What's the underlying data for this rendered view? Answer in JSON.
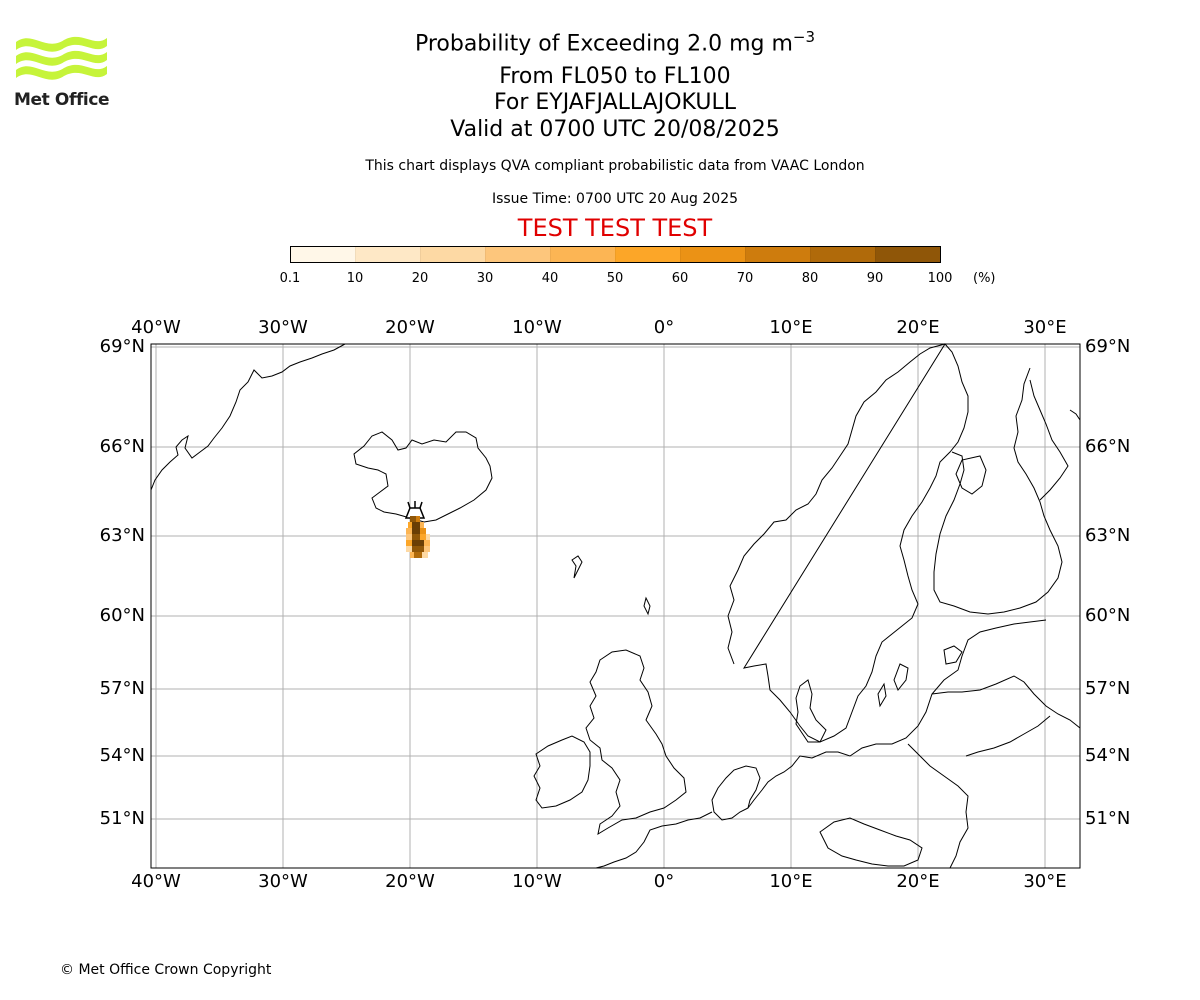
{
  "logo": {
    "text": "Met Office",
    "icon": "met-office-wave-logo",
    "color": "#c6f43a"
  },
  "title": {
    "main": "Probability of Exceeding 2.0 mg m",
    "superscript": "−3",
    "line2": "From FL050 to FL100",
    "line3": "For EYJAFJALLAJOKULL",
    "line4": "Valid at 0700 UTC 20/08/2025"
  },
  "subtitle": "This chart displays QVA compliant probabilistic data from VAAC London",
  "issue_time": "Issue Time: 0700 UTC 20 Aug 2025",
  "test_banner": "TEST TEST TEST",
  "colorbar": {
    "unit": "(%)",
    "ticks": [
      "0.1",
      "10",
      "20",
      "30",
      "40",
      "50",
      "60",
      "70",
      "80",
      "90",
      "100"
    ],
    "colors": [
      "#fff7e8",
      "#fee8c6",
      "#fdd9a4",
      "#fdc67c",
      "#fcb554",
      "#fca628",
      "#eb9215",
      "#ce7c0d",
      "#b06a0a",
      "#8f5608",
      "#6a3e05"
    ]
  },
  "map": {
    "lon_labels": [
      "40°W",
      "30°W",
      "20°W",
      "10°W",
      "0°",
      "10°E",
      "20°E",
      "30°E"
    ],
    "lat_labels": [
      "69°N",
      "66°N",
      "63°N",
      "60°N",
      "57°N",
      "54°N",
      "51°N"
    ],
    "volcano": "EYJAFJALLAJOKULL",
    "volcano_icon": "volcano-icon"
  },
  "copyright": "© Met Office Crown Copyright"
}
